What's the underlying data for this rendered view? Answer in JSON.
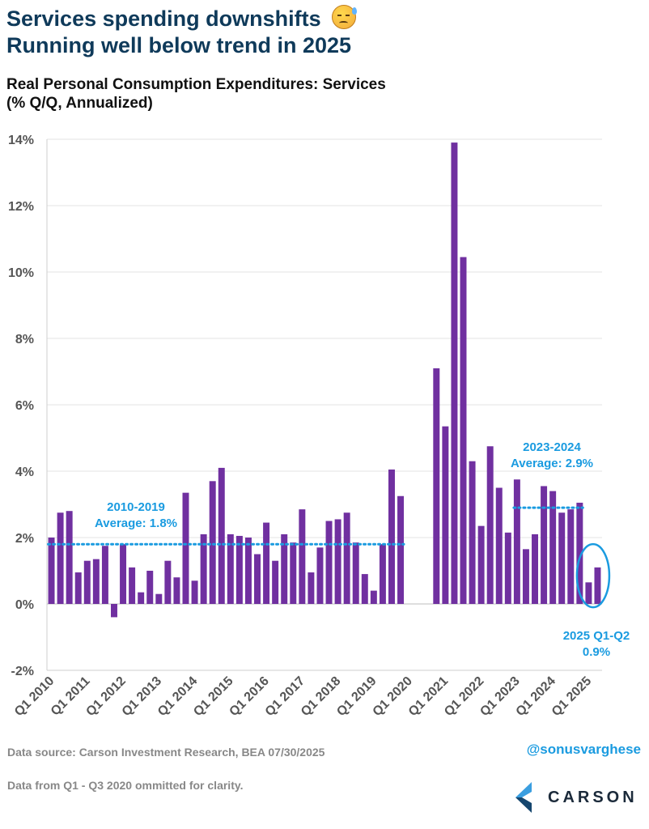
{
  "header": {
    "title_line1": "Services spending downshifts",
    "title_line2": "Running well below trend in 2025",
    "subtitle_line1": "Real Personal Consumption Expenditures: Services",
    "subtitle_line2": "(% Q/Q, Annualized)"
  },
  "footer": {
    "source": "Data source: Carson Investment Research, BEA   07/30/2025",
    "note": "Data from Q1 - Q3 2020 ommitted for clarity.",
    "handle": "@sonusvarghese",
    "logo_text": "CARSON"
  },
  "colors": {
    "bar": "#7030a0",
    "accent": "#1a9be0",
    "title": "#0f3a5a"
  },
  "chart_data": {
    "type": "bar",
    "ylim": [
      -2,
      14
    ],
    "yticks": [
      -2,
      0,
      2,
      4,
      6,
      8,
      10,
      12,
      14
    ],
    "ytick_labels": [
      "-2%",
      "0%",
      "2%",
      "4%",
      "6%",
      "8%",
      "10%",
      "12%",
      "14%"
    ],
    "x_labels": [
      "Q1 2010",
      "Q1 2011",
      "Q1 2012",
      "Q1 2013",
      "Q1 2014",
      "Q1 2015",
      "Q1 2016",
      "Q1 2017",
      "Q1 2018",
      "Q1 2019",
      "Q1 2020",
      "Q1 2021",
      "Q1 2022",
      "Q1 2023",
      "Q1 2024",
      "Q1 2025"
    ],
    "first_quarter": "Q1 2010",
    "values": [
      2.0,
      2.75,
      2.8,
      0.95,
      1.3,
      1.35,
      1.75,
      -0.4,
      1.8,
      1.1,
      0.35,
      1.0,
      0.3,
      1.3,
      0.8,
      3.35,
      0.7,
      2.1,
      3.7,
      4.1,
      2.1,
      2.05,
      2.0,
      1.5,
      2.45,
      1.3,
      2.1,
      1.85,
      2.85,
      0.95,
      1.7,
      2.5,
      2.55,
      2.75,
      1.85,
      0.9,
      0.4,
      1.8,
      4.05,
      3.25,
      null,
      null,
      null,
      7.1,
      5.35,
      13.9,
      10.45,
      4.3,
      2.35,
      4.75,
      3.5,
      2.15,
      3.75,
      1.65,
      2.1,
      3.55,
      3.4,
      2.75,
      2.85,
      3.05,
      0.65,
      1.1
    ],
    "averages": [
      {
        "label_line1": "2010-2019",
        "label_line2": "Average: 1.8%",
        "value": 1.8,
        "from": 0,
        "to": 39
      },
      {
        "label_line1": "2023-2024",
        "label_line2": "Average: 2.9%",
        "value": 2.9,
        "from": 52,
        "to": 59
      }
    ],
    "highlight": {
      "label_line1": "2025 Q1-Q2",
      "label_line2": "0.9%",
      "from": 60,
      "to": 61
    }
  }
}
